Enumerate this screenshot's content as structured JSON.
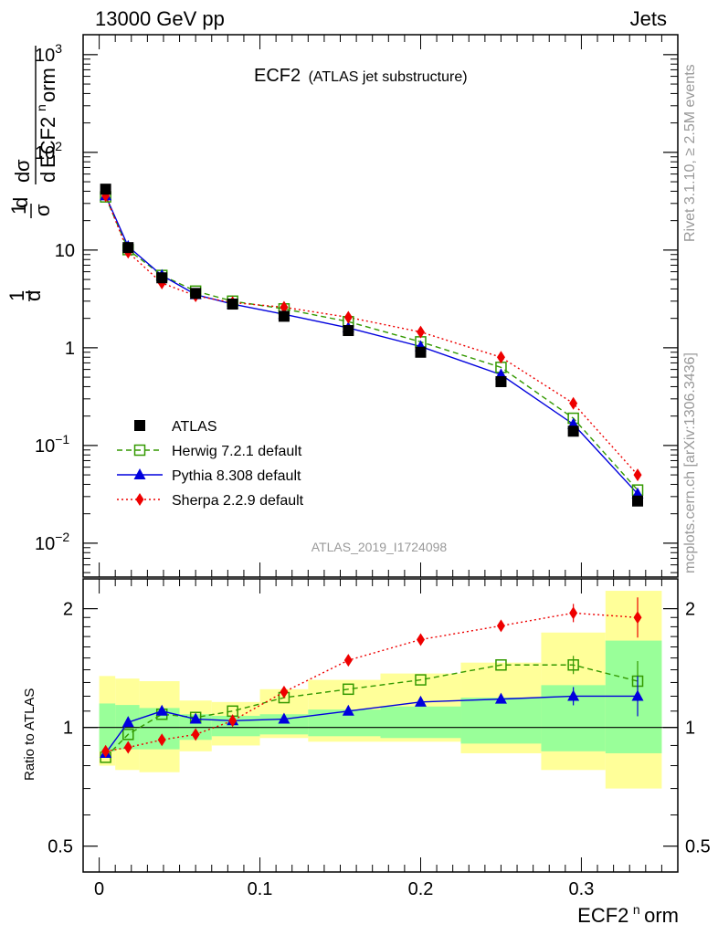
{
  "header": {
    "left": "13000 GeV pp",
    "right": "Jets"
  },
  "title": {
    "main": "ECF2",
    "sub": "(ATLAS jet substructure)"
  },
  "ylabel": {
    "d": "d",
    "sigma": "σ",
    "one": "1",
    "ecf": "ECF2",
    "sup": "n",
    "orm": "orm"
  },
  "side_labels": {
    "rivet": "Rivet 3.1.10, ≥ 2.5M events",
    "mcplots": "mcplots.cern.ch [arXiv:1306.3436]"
  },
  "watermark": "ATLAS_2019_I1724098",
  "xlabel": {
    "main": "ECF2",
    "sup": "n",
    "rest": "orm"
  },
  "ratio_label": "Ratio to ATLAS",
  "colors": {
    "data": "#000000",
    "herwig": "#339900",
    "pythia": "#0000dd",
    "sherpa": "#ee0000",
    "band_inner": "#99ff99",
    "band_outer": "#ffff99"
  },
  "chart_data": {
    "type": "scatter",
    "x": [
      0.004,
      0.018,
      0.039,
      0.06,
      0.083,
      0.115,
      0.155,
      0.2,
      0.25,
      0.295,
      0.335
    ],
    "bin_edges": [
      0.0,
      0.01,
      0.025,
      0.05,
      0.07,
      0.1,
      0.13,
      0.175,
      0.225,
      0.275,
      0.315,
      0.35
    ],
    "top": {
      "yscale": "log",
      "ylim": [
        0.0045,
        1600
      ],
      "yticks": [
        {
          "v": 1000,
          "base": "10",
          "exp": "3"
        },
        {
          "v": 100,
          "base": "10",
          "exp": "2"
        },
        {
          "v": 10,
          "base": "10",
          "exp": ""
        },
        {
          "v": 1,
          "base": "1",
          "exp": ""
        },
        {
          "v": 0.1,
          "base": "10",
          "exp": "−1"
        },
        {
          "v": 0.01,
          "base": "10",
          "exp": "−2"
        }
      ],
      "series": [
        {
          "name": "ATLAS",
          "marker": "square-filled",
          "values": [
            42,
            10.6,
            5.2,
            3.6,
            2.8,
            2.1,
            1.5,
            0.9,
            0.45,
            0.14,
            0.027
          ]
        },
        {
          "name": "Herwig 7.2.1 default",
          "marker": "square-open",
          "line": "dashed",
          "values": [
            35,
            10.1,
            5.5,
            3.8,
            3.0,
            2.5,
            1.85,
            1.15,
            0.63,
            0.19,
            0.035
          ]
        },
        {
          "name": "Pythia 8.308 default",
          "marker": "triangle",
          "line": "solid",
          "values": [
            36,
            10.9,
            5.5,
            3.5,
            2.8,
            2.2,
            1.6,
            1.03,
            0.53,
            0.165,
            0.032
          ]
        },
        {
          "name": "Sherpa 2.2.9 default",
          "marker": "diamond",
          "line": "dotted",
          "values": [
            36,
            9.5,
            4.6,
            3.4,
            2.9,
            2.6,
            2.05,
            1.45,
            0.8,
            0.27,
            0.05
          ]
        }
      ]
    },
    "ratio": {
      "yscale": "log",
      "ylim": [
        0.43,
        2.38
      ],
      "yticks": [
        0.5,
        1,
        2
      ],
      "band_inner": [
        [
          0.87,
          1.15
        ],
        [
          0.88,
          1.14
        ],
        [
          0.88,
          1.12
        ],
        [
          0.93,
          1.08
        ],
        [
          0.95,
          1.07
        ],
        [
          0.96,
          1.08
        ],
        [
          0.95,
          1.11
        ],
        [
          0.94,
          1.13
        ],
        [
          0.91,
          1.19
        ],
        [
          0.87,
          1.28
        ],
        [
          0.86,
          1.66
        ]
      ],
      "band_outer": [
        [
          0.8,
          1.35
        ],
        [
          0.78,
          1.33
        ],
        [
          0.77,
          1.31
        ],
        [
          0.87,
          1.17
        ],
        [
          0.9,
          1.16
        ],
        [
          0.94,
          1.25
        ],
        [
          0.92,
          1.32
        ],
        [
          0.92,
          1.37
        ],
        [
          0.86,
          1.46
        ],
        [
          0.78,
          1.74
        ],
        [
          0.7,
          2.22
        ]
      ],
      "series": [
        {
          "name": "Herwig 7.2.1 default",
          "values": [
            0.84,
            0.96,
            1.08,
            1.06,
            1.1,
            1.19,
            1.25,
            1.32,
            1.44,
            1.44,
            1.31
          ]
        },
        {
          "name": "Pythia 8.308 default",
          "values": [
            0.86,
            1.03,
            1.1,
            1.05,
            1.04,
            1.05,
            1.1,
            1.16,
            1.18,
            1.2,
            1.2
          ]
        },
        {
          "name": "Sherpa 2.2.9 default",
          "values": [
            0.87,
            0.89,
            0.93,
            0.96,
            1.04,
            1.23,
            1.48,
            1.67,
            1.81,
            1.95,
            1.9
          ]
        }
      ]
    },
    "xlim": [
      -0.01,
      0.36
    ],
    "xticks": [
      0,
      0.1,
      0.2,
      0.3
    ],
    "xtick_labels": [
      "0",
      "0.1",
      "0.2",
      "0.3"
    ],
    "legend_position": "lower-left",
    "grid": false
  }
}
